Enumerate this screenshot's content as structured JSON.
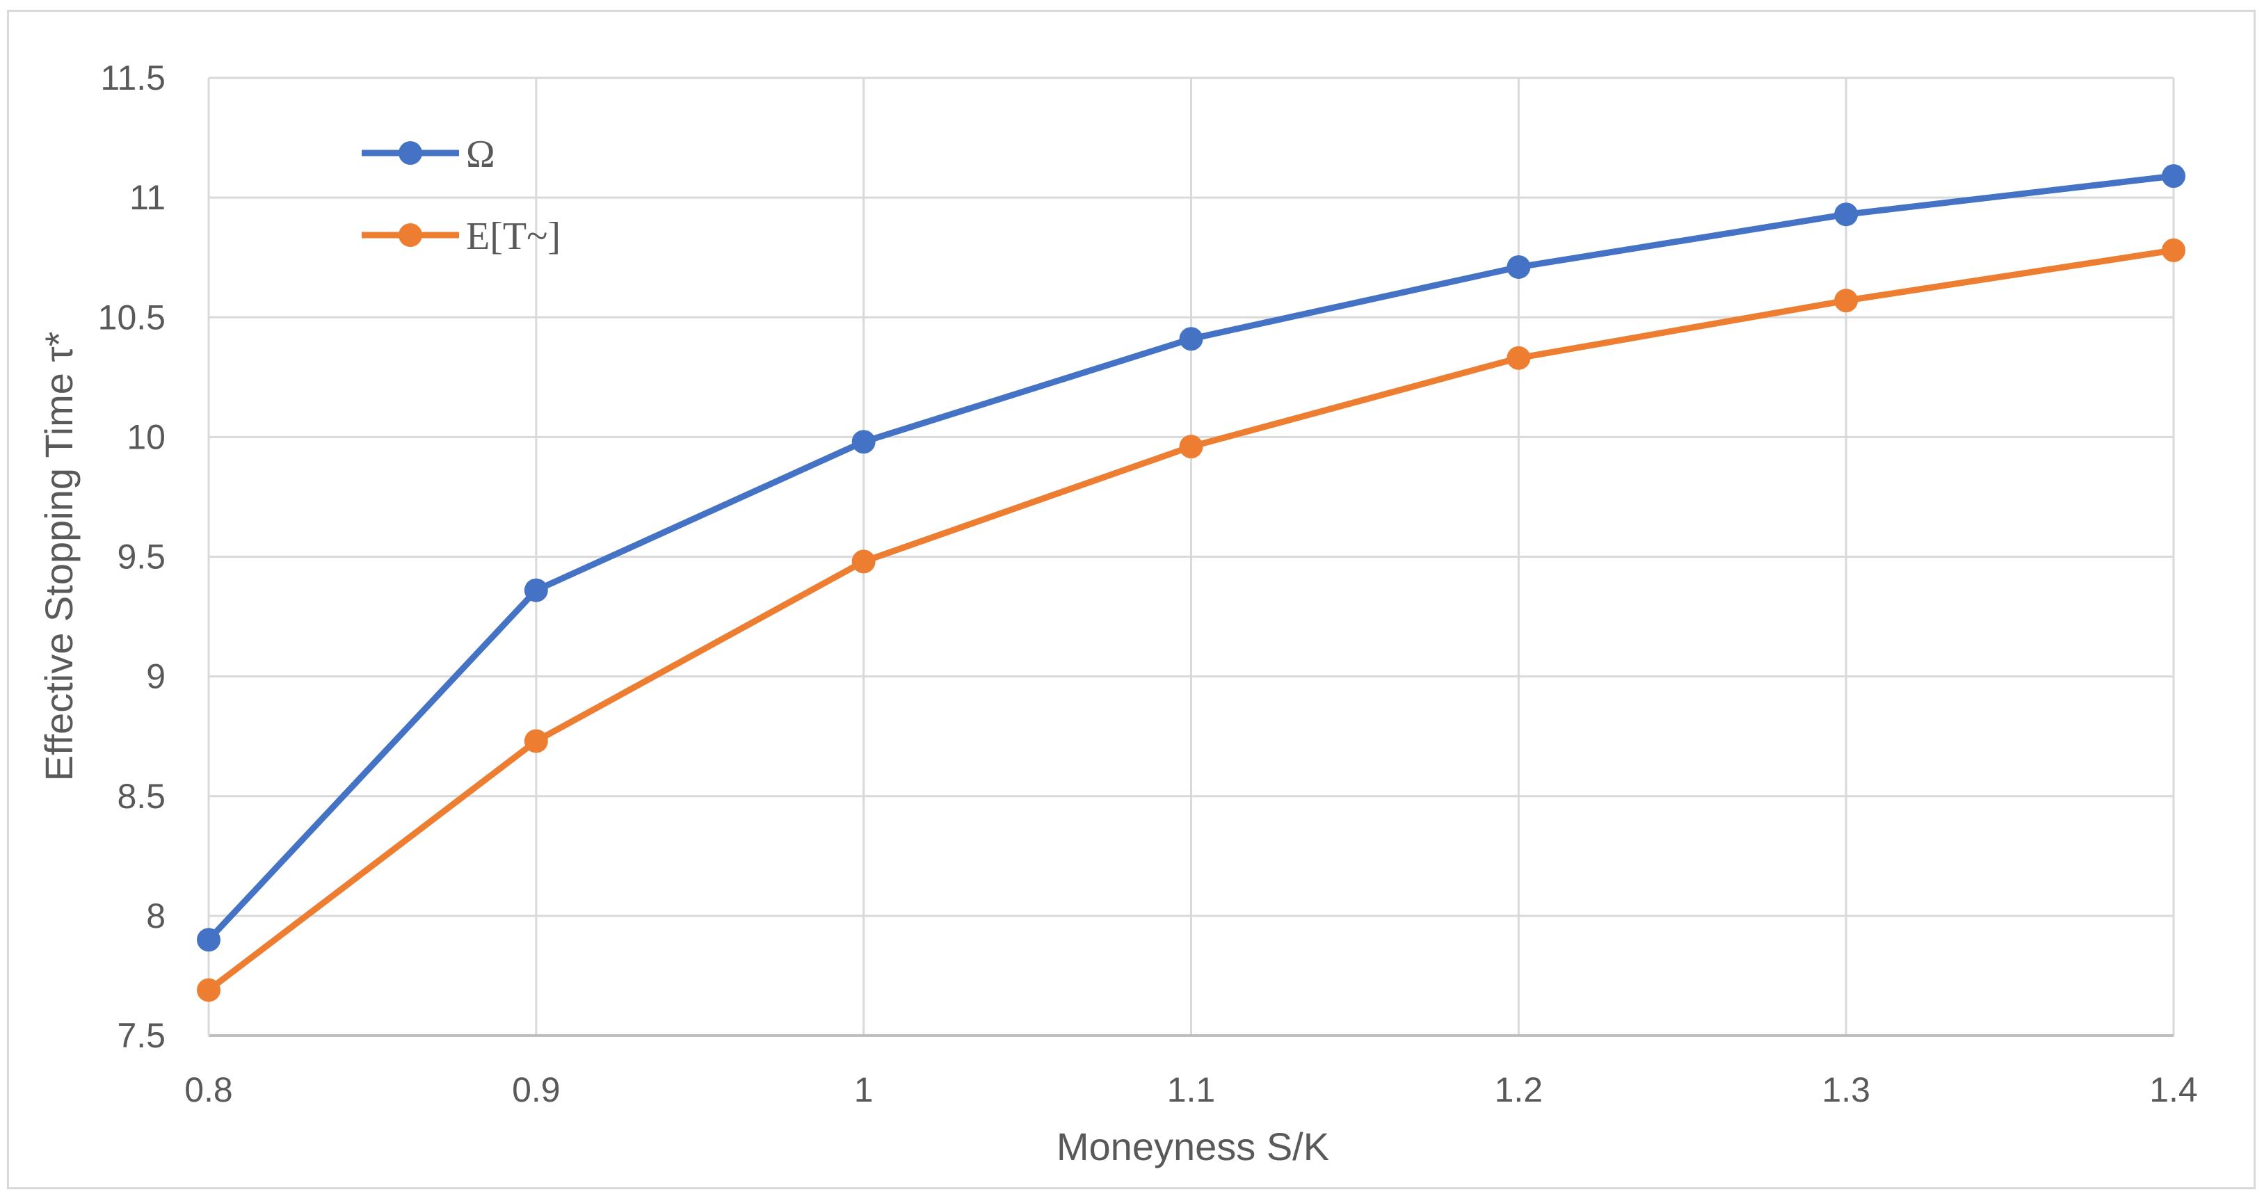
{
  "chart_data": {
    "type": "line",
    "title": "",
    "xlabel": "Moneyness S/K",
    "ylabel": "Effective Stopping Time τ*",
    "x": [
      0.8,
      0.9,
      1,
      1.1,
      1.2,
      1.3,
      1.4
    ],
    "x_tick_labels": [
      "0.8",
      "0.9",
      "1",
      "1.1",
      "1.2",
      "1.3",
      "1.4"
    ],
    "y_tick_labels": [
      "7.5",
      "8",
      "8.5",
      "9",
      "9.5",
      "10",
      "10.5",
      "11",
      "11.5"
    ],
    "xlim": [
      0.8,
      1.4
    ],
    "ylim": [
      7.5,
      11.5
    ],
    "y_ticks": [
      7.5,
      8,
      8.5,
      9,
      9.5,
      10,
      10.5,
      11,
      11.5
    ],
    "grid": true,
    "legend_position": "top-left",
    "series": [
      {
        "name": "Ω",
        "color": "#4472c4",
        "values": [
          7.9,
          9.36,
          9.98,
          10.41,
          10.71,
          10.93,
          11.09
        ]
      },
      {
        "name": "E[T~]",
        "color": "#ed7d31",
        "values": [
          7.69,
          8.73,
          9.48,
          9.96,
          10.33,
          10.57,
          10.78
        ]
      }
    ]
  }
}
